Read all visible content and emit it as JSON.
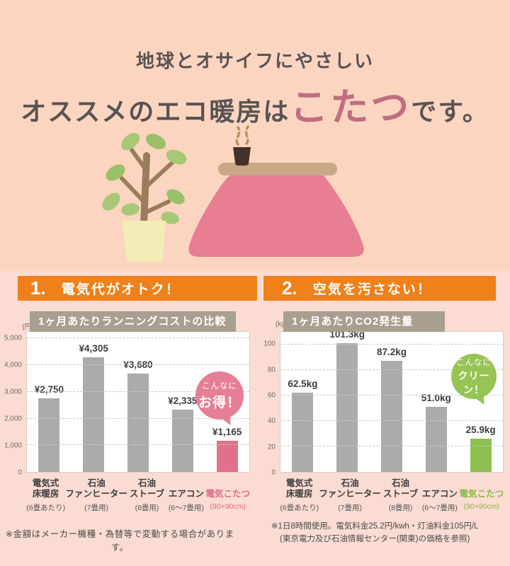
{
  "colors": {
    "bg-top": "#fcd5c0",
    "bg-bottom": "#fbdcd2",
    "accent-orange": "#f08019",
    "title-taupe": "#a89f90",
    "headline-pink": "#c06d81",
    "text-dark": "#585353"
  },
  "header": {
    "line1": "地球とオサイフにやさしい",
    "line2_prefix": "オススメのエコ暖房は",
    "line2_highlight": "こたつ",
    "line2_suffix": "です。"
  },
  "sections": [
    {
      "number": "1.",
      "title": "電気代がオトク！"
    },
    {
      "number": "2.",
      "title": "空気を汚さない！"
    }
  ],
  "chart_data": [
    {
      "type": "bar",
      "title": "1ヶ月あたりランニングコストの比較",
      "unit": "(円)",
      "ylabel": "円",
      "ylim": [
        0,
        5250
      ],
      "grid": "dashed-horizontal",
      "legend": false,
      "yticks": [
        0,
        1000,
        2000,
        3000,
        4000,
        5000
      ],
      "ytick_labels": [
        "0",
        "1,000",
        "2,000",
        "3,000",
        "4,000",
        "5,000"
      ],
      "categories": [
        {
          "lines": [
            "電気式",
            "床暖房"
          ],
          "sub": "(6畳あたり)"
        },
        {
          "lines": [
            "石油",
            "ファンヒーター"
          ],
          "sub": "(7畳用)"
        },
        {
          "lines": [
            "石油",
            "ストーブ"
          ],
          "sub": "(8畳用)"
        },
        {
          "lines": [
            "エアコン"
          ],
          "sub": "(6～7畳用)"
        },
        {
          "lines": [
            "電気こたつ"
          ],
          "sub": "(90×90cm)"
        }
      ],
      "values": [
        2750,
        4305,
        3680,
        2335,
        1165
      ],
      "value_labels": [
        "¥2,750",
        "¥4,305",
        "¥3,680",
        "¥2,335",
        "¥1,165"
      ],
      "bar_color": "#ababab",
      "highlight_index": 4,
      "highlight_color": "#e1718b",
      "highlight_label_color": "#db6d87",
      "bubble": {
        "line1": "こんなに",
        "line2": "お得！",
        "color": "#e57f95"
      }
    },
    {
      "type": "bar",
      "title": "1ヶ月あたりCO2発生量",
      "unit": "(kg)",
      "ylabel": "kg",
      "ylim": [
        0,
        110
      ],
      "grid": "dashed-horizontal",
      "legend": false,
      "yticks": [
        0,
        20,
        40,
        60,
        80,
        100
      ],
      "ytick_labels": [
        "0",
        "20",
        "40",
        "60",
        "80",
        "100"
      ],
      "categories": [
        {
          "lines": [
            "電気式",
            "床暖房"
          ],
          "sub": "(6畳あたり)"
        },
        {
          "lines": [
            "石油",
            "ファンヒーター"
          ],
          "sub": "(7畳用)"
        },
        {
          "lines": [
            "石油",
            "ストーブ"
          ],
          "sub": "(8畳用)"
        },
        {
          "lines": [
            "エアコン"
          ],
          "sub": "(6～7畳用)"
        },
        {
          "lines": [
            "電気こたつ"
          ],
          "sub": "(90×90cm)"
        }
      ],
      "values": [
        62.5,
        101.3,
        87.2,
        51.0,
        25.9
      ],
      "value_labels": [
        "62.5kg",
        "101.3kg",
        "87.2kg",
        "51.0kg",
        "25.9kg"
      ],
      "bar_color": "#ababab",
      "highlight_index": 4,
      "highlight_color": "#8ec050",
      "highlight_label_color": "#85bb45",
      "bubble": {
        "line1": "こんなに",
        "line2": "クリーン！",
        "color": "#96c455"
      }
    }
  ],
  "footnotes": {
    "left": "※金額はメーカー機種・為替等で変動する場合があります。",
    "right_line1": "※1日8時間使用。電気料金25.2円/kwh・灯油料金105円/L",
    "right_line2": "(東京電力及び石油情報センター(関東)の価格を参照)"
  }
}
